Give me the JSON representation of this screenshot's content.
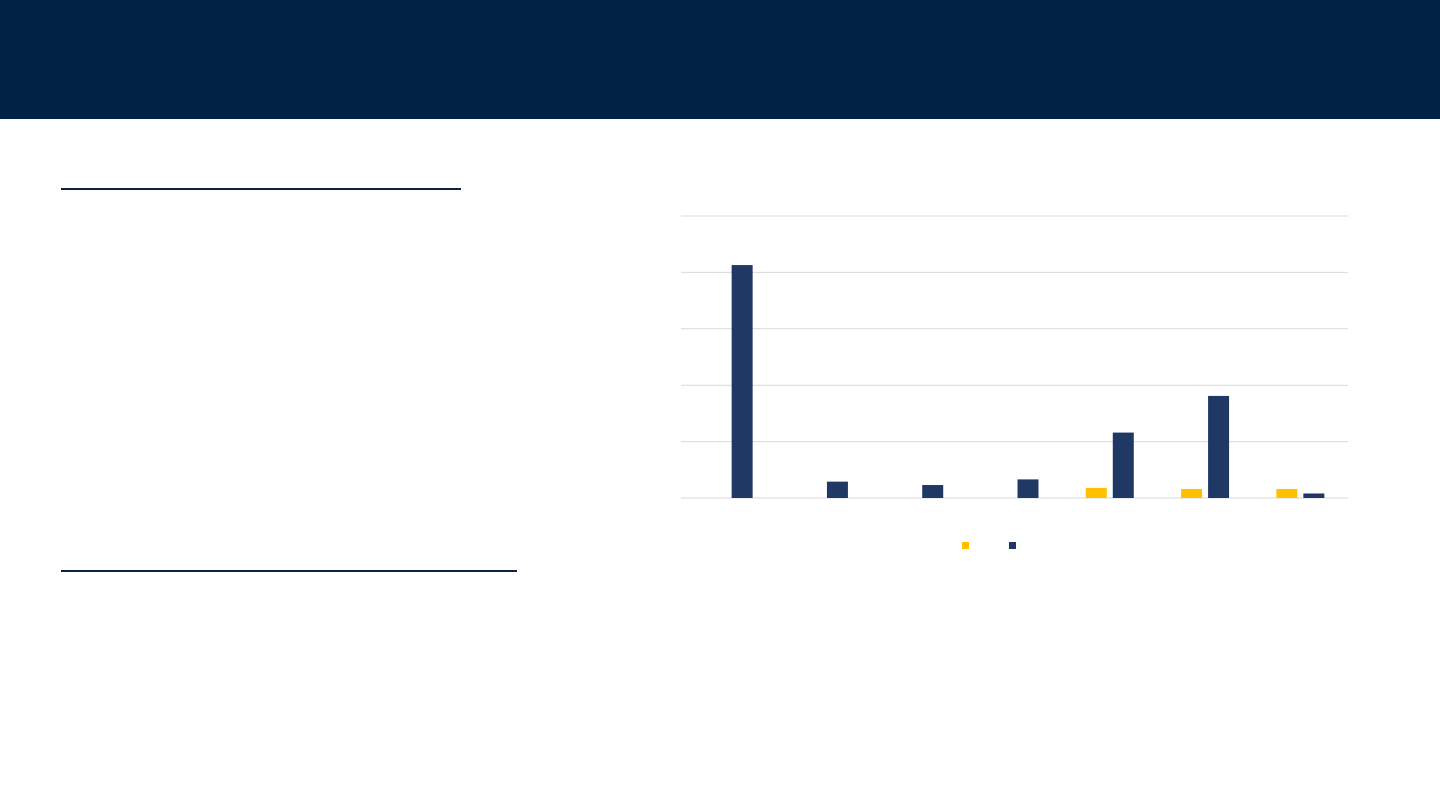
{
  "slide": {
    "header_color": "#002345",
    "rule_color": "#0b2340"
  },
  "chart_data": {
    "type": "bar",
    "categories": [
      "",
      "",
      "",
      "",
      "",
      "",
      ""
    ],
    "ylim": [
      0,
      5
    ],
    "grid": true,
    "legend": "bottom",
    "series": [
      {
        "color": "#ffc000",
        "values": [
          0,
          0,
          0,
          0,
          0.18,
          0.16,
          0.16
        ]
      },
      {
        "color": "#203864",
        "values": [
          4.13,
          0.29,
          0.23,
          0.33,
          1.16,
          1.81,
          0.08
        ]
      }
    ]
  }
}
